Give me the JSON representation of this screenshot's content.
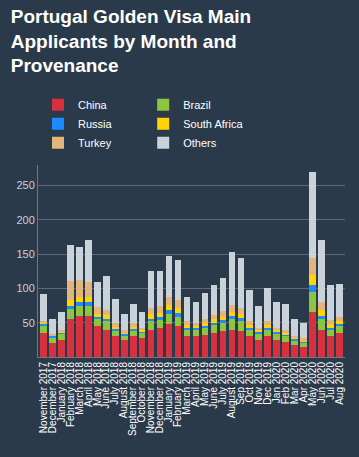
{
  "chart_data": {
    "type": "bar",
    "title": "Portugal Golden Visa Main Applicants by Month and Provenance",
    "stacked": true,
    "grid": true,
    "legend": "top-left",
    "categories": [
      "November 2017",
      "December 2017",
      "January 2018",
      "February 2018",
      "March 2018",
      "April 2018",
      "May 2018",
      "June 2018",
      "July 2018",
      "August 2018",
      "September 2018",
      "October 2018",
      "November 2018",
      "December 2018",
      "January 2019",
      "February 2019",
      "March 2019",
      "April 2019",
      "May 2019",
      "June 2019",
      "July 2019",
      "August 2019",
      "Sep 2019",
      "Oct 2019",
      "Nov 2019",
      "Dec 2019",
      "Jan 2020",
      "Feb 2020",
      "Mar 2020",
      "Apr 2020",
      "May 2020",
      "Jun 2020",
      "Jul 2020",
      "Aug 2020"
    ],
    "series": [
      {
        "name": "China",
        "color": "#d7303f",
        "values": [
          35,
          20,
          25,
          55,
          60,
          60,
          45,
          40,
          30,
          25,
          30,
          28,
          40,
          42,
          48,
          45,
          30,
          30,
          32,
          35,
          38,
          40,
          38,
          30,
          25,
          30,
          25,
          22,
          18,
          15,
          65,
          40,
          30,
          35
        ]
      },
      {
        "name": "Brazil",
        "color": "#8cc63f",
        "values": [
          10,
          8,
          8,
          15,
          15,
          15,
          10,
          12,
          8,
          6,
          8,
          7,
          12,
          12,
          15,
          14,
          10,
          9,
          10,
          12,
          12,
          15,
          14,
          10,
          8,
          10,
          8,
          8,
          6,
          5,
          30,
          15,
          10,
          10
        ]
      },
      {
        "name": "Russia",
        "color": "#1a8cff",
        "values": [
          3,
          2,
          2,
          5,
          5,
          5,
          3,
          4,
          3,
          2,
          3,
          2,
          4,
          4,
          5,
          5,
          3,
          3,
          3,
          3,
          4,
          5,
          5,
          3,
          3,
          3,
          3,
          2,
          2,
          2,
          10,
          5,
          3,
          3
        ]
      },
      {
        "name": "South Africa",
        "color": "#ffd400",
        "values": [
          2,
          1,
          2,
          8,
          8,
          8,
          5,
          5,
          3,
          2,
          3,
          2,
          6,
          6,
          8,
          7,
          4,
          3,
          4,
          5,
          5,
          6,
          6,
          4,
          3,
          4,
          3,
          3,
          2,
          2,
          15,
          8,
          5,
          5
        ]
      },
      {
        "name": "Turkey",
        "color": "#e3b47c",
        "values": [
          2,
          2,
          2,
          28,
          25,
          22,
          10,
          8,
          6,
          4,
          5,
          4,
          10,
          10,
          12,
          12,
          6,
          5,
          6,
          6,
          8,
          10,
          8,
          5,
          4,
          5,
          4,
          4,
          3,
          3,
          25,
          12,
          6,
          6
        ]
      },
      {
        "name": "Others",
        "color": "#c9d1d9",
        "values": [
          40,
          22,
          26,
          52,
          47,
          60,
          37,
          49,
          35,
          23,
          29,
          22,
          53,
          51,
          60,
          59,
          35,
          30,
          38,
          44,
          48,
          77,
          74,
          46,
          32,
          48,
          37,
          39,
          24,
          23,
          125,
          90,
          51,
          48
        ]
      }
    ],
    "ylim": [
      0,
      280
    ],
    "yticks": [
      50,
      100,
      150,
      200,
      250
    ]
  }
}
